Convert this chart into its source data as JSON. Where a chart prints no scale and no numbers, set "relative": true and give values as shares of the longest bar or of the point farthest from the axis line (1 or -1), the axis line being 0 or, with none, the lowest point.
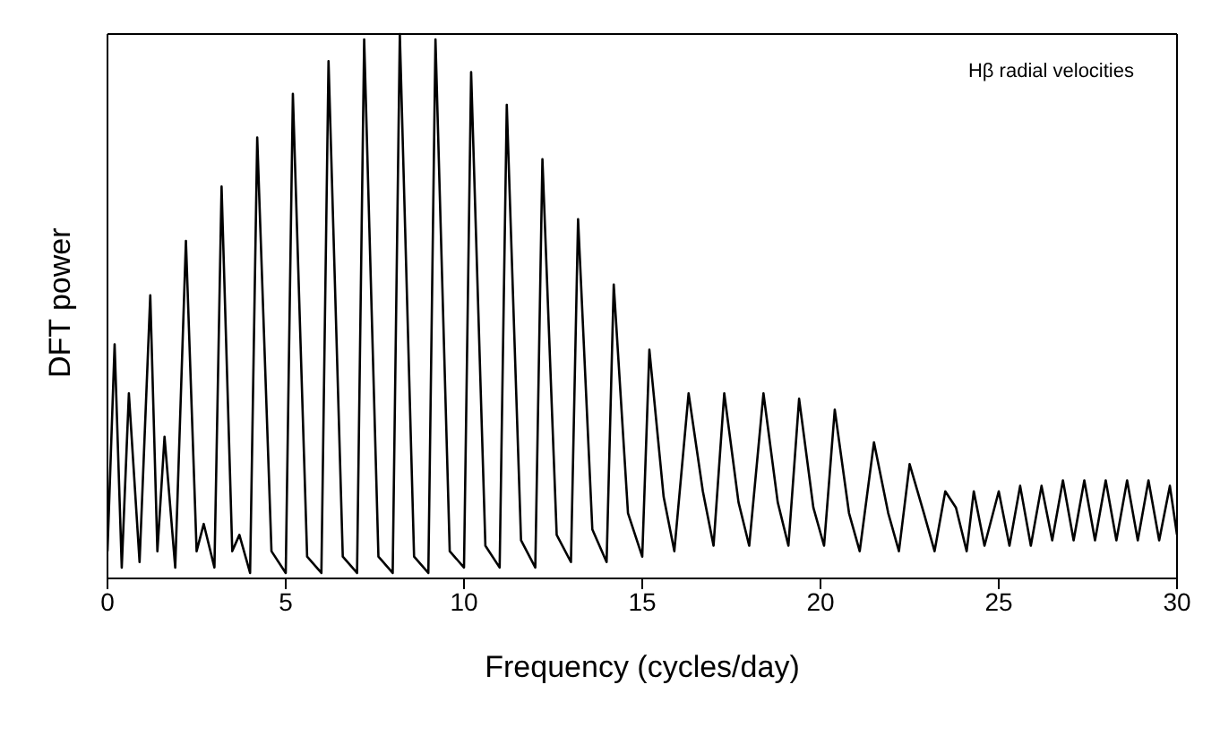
{
  "chart_data": {
    "type": "line",
    "relative": true,
    "xlabel": "Frequency (cycles/day)",
    "ylabel": "DFT power",
    "annotations": [
      "Hβ radial velocities"
    ],
    "xlim": [
      0,
      30
    ],
    "xticks": [
      0,
      5,
      10,
      15,
      20,
      25,
      30
    ],
    "marker": "none",
    "line_style": "solid",
    "legend": false,
    "grid": false,
    "series": [
      {
        "color": "#000000",
        "x": [
          0,
          0.2,
          0.4,
          0.6,
          0.9,
          1.2,
          1.4,
          1.6,
          1.9,
          2.2,
          2.5,
          2.7,
          3.0,
          3.2,
          3.5,
          3.7,
          4.0,
          4.2,
          4.6,
          5.0,
          5.2,
          5.6,
          6.0,
          6.2,
          6.6,
          7.0,
          7.2,
          7.6,
          8.0,
          8.2,
          8.6,
          9.0,
          9.2,
          9.6,
          10.0,
          10.2,
          10.6,
          11.0,
          11.2,
          11.6,
          12.0,
          12.2,
          12.6,
          13.0,
          13.2,
          13.6,
          14.0,
          14.2,
          14.6,
          15.0,
          15.2,
          15.6,
          15.9,
          16.3,
          16.7,
          17.0,
          17.3,
          17.7,
          18.0,
          18.4,
          18.8,
          19.1,
          19.4,
          19.8,
          20.1,
          20.4,
          20.8,
          21.1,
          21.5,
          21.9,
          22.2,
          22.5,
          22.9,
          23.2,
          23.5,
          23.8,
          24.1,
          24.3,
          24.6,
          25.0,
          25.3,
          25.6,
          25.9,
          26.2,
          26.5,
          26.8,
          27.1,
          27.4,
          27.7,
          28.0,
          28.3,
          28.6,
          28.9,
          29.2,
          29.5,
          29.8,
          30
        ],
        "values": [
          0.05,
          0.43,
          0.02,
          0.34,
          0.03,
          0.52,
          0.05,
          0.26,
          0.02,
          0.62,
          0.05,
          0.1,
          0.02,
          0.72,
          0.05,
          0.08,
          0.01,
          0.81,
          0.05,
          0.01,
          0.89,
          0.04,
          0.01,
          0.95,
          0.04,
          0.01,
          0.99,
          0.04,
          0.01,
          1,
          0.04,
          0.01,
          0.99,
          0.05,
          0.02,
          0.93,
          0.06,
          0.02,
          0.87,
          0.07,
          0.02,
          0.77,
          0.08,
          0.03,
          0.66,
          0.09,
          0.03,
          0.54,
          0.12,
          0.04,
          0.42,
          0.15,
          0.05,
          0.34,
          0.16,
          0.06,
          0.34,
          0.14,
          0.06,
          0.34,
          0.14,
          0.06,
          0.33,
          0.13,
          0.06,
          0.31,
          0.12,
          0.05,
          0.25,
          0.12,
          0.05,
          0.21,
          0.12,
          0.05,
          0.16,
          0.13,
          0.05,
          0.16,
          0.06,
          0.16,
          0.06,
          0.17,
          0.06,
          0.17,
          0.07,
          0.18,
          0.07,
          0.18,
          0.07,
          0.18,
          0.07,
          0.18,
          0.07,
          0.18,
          0.07,
          0.17,
          0.08
        ]
      }
    ]
  }
}
